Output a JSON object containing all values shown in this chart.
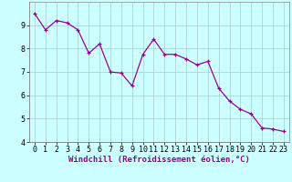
{
  "x": [
    0,
    1,
    2,
    3,
    4,
    5,
    6,
    7,
    8,
    9,
    10,
    11,
    12,
    13,
    14,
    15,
    16,
    17,
    18,
    19,
    20,
    21,
    22,
    23
  ],
  "y": [
    9.5,
    8.8,
    9.2,
    9.1,
    8.8,
    7.8,
    8.2,
    7.0,
    6.95,
    6.4,
    7.75,
    8.4,
    7.75,
    7.75,
    7.55,
    7.3,
    7.45,
    6.3,
    5.75,
    5.4,
    5.2,
    4.6,
    4.55,
    4.45
  ],
  "line_color": "#990099",
  "marker": "+",
  "marker_size": 3,
  "bg_color": "#ccffff",
  "grid_color": "#aacccc",
  "xlabel": "Windchill (Refroidissement éolien,°C)",
  "xlabel_fontsize": 6.5,
  "tick_fontsize": 6,
  "ylim": [
    4,
    10
  ],
  "xlim": [
    -0.5,
    23.5
  ],
  "yticks": [
    4,
    5,
    6,
    7,
    8,
    9
  ],
  "xticks": [
    0,
    1,
    2,
    3,
    4,
    5,
    6,
    7,
    8,
    9,
    10,
    11,
    12,
    13,
    14,
    15,
    16,
    17,
    18,
    19,
    20,
    21,
    22,
    23
  ]
}
